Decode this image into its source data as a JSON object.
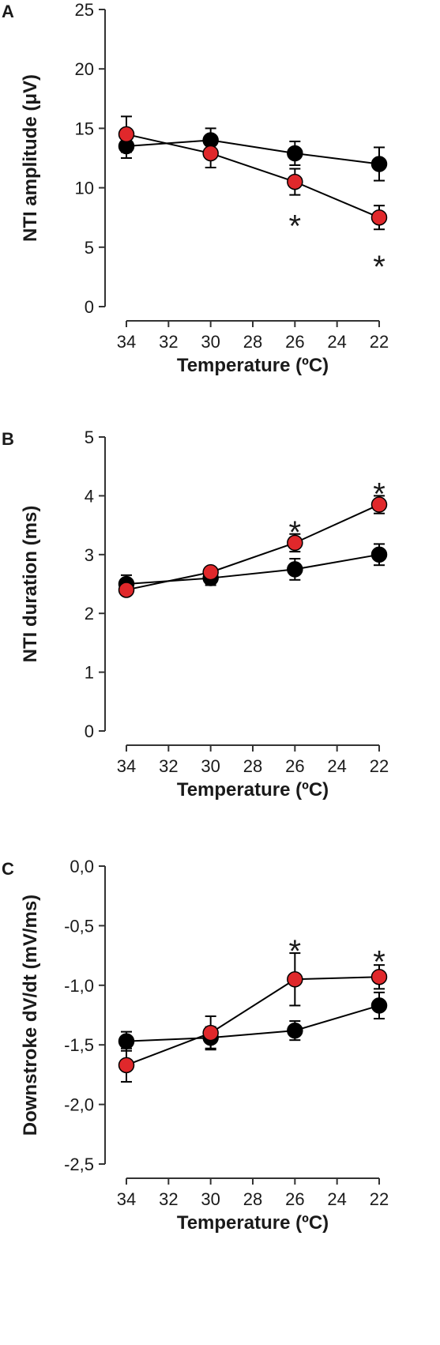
{
  "colors": {
    "series_black": "#000000",
    "series_red": "#e0282b",
    "axis": "#333333"
  },
  "chart_data": [
    {
      "type": "line",
      "panel_label": "A",
      "xlabel": "Temperature (ºC)",
      "ylabel": "NTI amplitude (μV)",
      "x_reversed": true,
      "xlim": [
        34,
        22
      ],
      "xticks": [
        34,
        32,
        30,
        28,
        26,
        24,
        22
      ],
      "xtick_labels": [
        "34",
        "32",
        "30",
        "28",
        "26",
        "24",
        "22"
      ],
      "ylim": [
        0,
        25
      ],
      "yticks": [
        0,
        5,
        10,
        15,
        20,
        25
      ],
      "ytick_labels": [
        "0",
        "5",
        "10",
        "15",
        "20",
        "25"
      ],
      "grid": false,
      "x": [
        34,
        30,
        26,
        22
      ],
      "series": [
        {
          "color": "black",
          "values": [
            13.5,
            14.0,
            12.9,
            12.0
          ],
          "errors": [
            1.0,
            1.0,
            1.0,
            1.4
          ]
        },
        {
          "color": "red",
          "values": [
            14.5,
            12.9,
            10.5,
            7.5
          ],
          "errors": [
            1.5,
            1.2,
            1.1,
            1.0
          ]
        }
      ],
      "annotations": [
        {
          "text": "*",
          "x": 26,
          "y": 7.6
        },
        {
          "text": "*",
          "x": 22,
          "y": 4.2
        }
      ]
    },
    {
      "type": "line",
      "panel_label": "B",
      "xlabel": "Temperature (ºC)",
      "ylabel": "NTI duration (ms)",
      "x_reversed": true,
      "xlim": [
        34,
        22
      ],
      "xticks": [
        34,
        32,
        30,
        28,
        26,
        24,
        22
      ],
      "xtick_labels": [
        "34",
        "32",
        "30",
        "28",
        "26",
        "24",
        "22"
      ],
      "ylim": [
        0,
        5
      ],
      "yticks": [
        0,
        1,
        2,
        3,
        4,
        5
      ],
      "ytick_labels": [
        "0",
        "1",
        "2",
        "3",
        "4",
        "5"
      ],
      "grid": false,
      "x": [
        34,
        30,
        26,
        22
      ],
      "series": [
        {
          "color": "black",
          "values": [
            2.5,
            2.6,
            2.75,
            3.0
          ],
          "errors": [
            0.15,
            0.12,
            0.18,
            0.18
          ]
        },
        {
          "color": "red",
          "values": [
            2.4,
            2.7,
            3.2,
            3.85
          ],
          "errors": [
            0.08,
            0.08,
            0.15,
            0.15
          ]
        }
      ],
      "annotations": [
        {
          "text": "*",
          "x": 26,
          "y": 3.55
        },
        {
          "text": "*",
          "x": 22,
          "y": 4.2
        }
      ]
    },
    {
      "type": "line",
      "panel_label": "C",
      "xlabel": "Temperature (ºC)",
      "ylabel": "Downstroke dV/dt (mV/ms)",
      "x_reversed": true,
      "xlim": [
        34,
        22
      ],
      "xticks": [
        34,
        32,
        30,
        28,
        26,
        24,
        22
      ],
      "xtick_labels": [
        "34",
        "32",
        "30",
        "28",
        "26",
        "24",
        "22"
      ],
      "ylim": [
        -2.5,
        0.0
      ],
      "yticks": [
        -2.5,
        -2.0,
        -1.5,
        -1.0,
        -0.5,
        0.0
      ],
      "ytick_labels": [
        "-2,5",
        "-2,0",
        "-1,5",
        "-1,0",
        "-0,5",
        "0,0"
      ],
      "grid": false,
      "x": [
        34,
        30,
        26,
        22
      ],
      "series": [
        {
          "color": "black",
          "values": [
            -1.47,
            -1.44,
            -1.38,
            -1.17
          ],
          "errors": [
            0.08,
            0.09,
            0.08,
            0.11
          ]
        },
        {
          "color": "red",
          "values": [
            -1.67,
            -1.4,
            -0.95,
            -0.93
          ],
          "errors": [
            0.14,
            0.14,
            0.22,
            0.1
          ]
        }
      ],
      "annotations": [
        {
          "text": "*",
          "x": 26,
          "y": -0.63
        },
        {
          "text": "*",
          "x": 22,
          "y": -0.72
        }
      ]
    }
  ]
}
